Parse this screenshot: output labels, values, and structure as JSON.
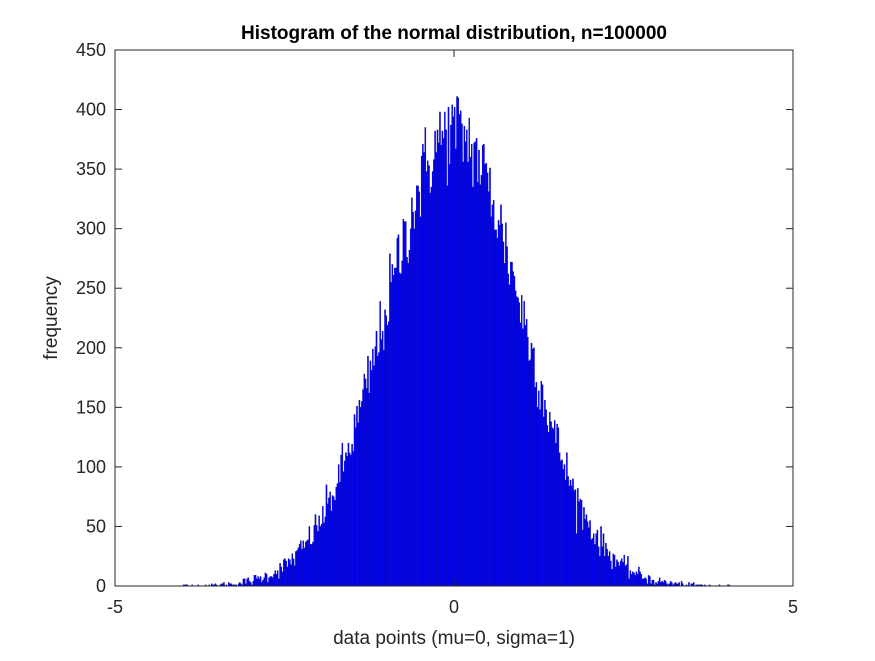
{
  "chart_data": {
    "type": "bar",
    "title": "Histogram of the normal distribution, n=100000",
    "xlabel": "data points (mu=0, sigma=1)",
    "ylabel": "frequency",
    "xlim": [
      -5,
      5
    ],
    "ylim": [
      0,
      450
    ],
    "xticks": [
      -5,
      0,
      5
    ],
    "xtick_labels": [
      "-5",
      "0",
      "5"
    ],
    "yticks": [
      0,
      50,
      100,
      150,
      200,
      250,
      300,
      350,
      400,
      450
    ],
    "ytick_labels": [
      "0",
      "50",
      "100",
      "150",
      "200",
      "250",
      "300",
      "350",
      "400",
      "450"
    ],
    "grid": false,
    "legend": null,
    "bar_color": "#0000ff",
    "edge_color": "#000080",
    "histogram": {
      "n_samples": 100000,
      "mu": 0,
      "sigma": 1,
      "peak_frequency": 411
    },
    "series": [
      {
        "values": [
          {
            "x": -4.5,
            "y": 0
          },
          {
            "x": -4.0,
            "y": 1
          },
          {
            "x": -3.5,
            "y": 4
          },
          {
            "x": -3.0,
            "y": 10
          },
          {
            "x": -2.5,
            "y": 30
          },
          {
            "x": -2.0,
            "y": 70
          },
          {
            "x": -1.5,
            "y": 135
          },
          {
            "x": -1.0,
            "y": 225
          },
          {
            "x": -0.5,
            "y": 320
          },
          {
            "x": 0.0,
            "y": 380
          },
          {
            "x": 0.5,
            "y": 325
          },
          {
            "x": 1.0,
            "y": 225
          },
          {
            "x": 1.5,
            "y": 135
          },
          {
            "x": 2.0,
            "y": 70
          },
          {
            "x": 2.5,
            "y": 30
          },
          {
            "x": 3.0,
            "y": 10
          },
          {
            "x": 3.5,
            "y": 4
          },
          {
            "x": 4.0,
            "y": 1
          },
          {
            "x": 4.5,
            "y": 0
          }
        ]
      }
    ]
  }
}
